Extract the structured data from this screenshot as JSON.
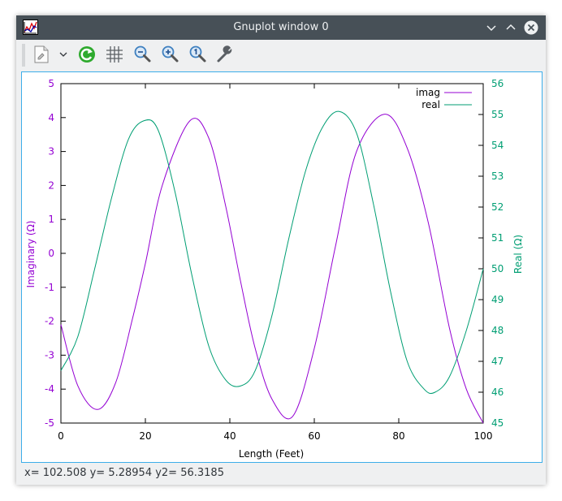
{
  "window": {
    "title": "Gnuplot window 0",
    "statusbar": "x= 102.508 y= 5.28954 y2= 56.3185"
  },
  "toolbar": {
    "items": [
      "export-icon",
      "dropdown-icon",
      "replot-icon",
      "grid-icon",
      "zoom-out-icon",
      "zoom-in-icon",
      "zoom-auto-icon",
      "settings-icon"
    ]
  },
  "colors": {
    "imag": "#9400d3",
    "real": "#009e73",
    "titlebar": "#475057"
  },
  "chart_data": {
    "type": "line",
    "xlabel": "Length (Feet)",
    "ylabel": "Imaginary (Ω)",
    "y2label": "Real (Ω)",
    "xlim": [
      0,
      100
    ],
    "ylim": [
      -5,
      5
    ],
    "y2lim": [
      45,
      56
    ],
    "xticks": [
      0,
      20,
      40,
      60,
      80,
      100
    ],
    "yticks": [
      5,
      4,
      3,
      2,
      1,
      0,
      -1,
      -2,
      -3,
      -4,
      -5
    ],
    "y2ticks": [
      56,
      55,
      54,
      53,
      52,
      51,
      50,
      49,
      48,
      47,
      46,
      45
    ],
    "grid": false,
    "legend": "top-right",
    "series": [
      {
        "name": "imag",
        "axis": "y",
        "x": [
          0,
          4,
          8.7,
          13,
          17,
          20,
          24,
          30.5,
          35,
          39,
          42.5,
          46,
          50,
          54.9,
          60,
          65,
          70,
          76.7,
          82,
          87,
          92,
          96,
          100
        ],
        "y": [
          -2.1,
          -3.9,
          -4.6,
          -3.8,
          -1.9,
          -0.3,
          2.0,
          3.9,
          3.4,
          1.4,
          -0.8,
          -2.8,
          -4.3,
          -4.8,
          -2.8,
          0.2,
          3.0,
          4.1,
          3.1,
          0.9,
          -2.2,
          -4.0,
          -5.0
        ]
      },
      {
        "name": "real",
        "axis": "y2",
        "x": [
          0,
          4,
          8,
          12,
          16,
          19.7,
          23,
          27,
          31,
          35,
          39,
          42.5,
          46,
          50,
          54,
          58,
          62,
          65.9,
          70,
          74,
          78,
          82,
          86,
          88.6,
          92,
          96,
          100
        ],
        "y": [
          46.7,
          47.8,
          50.0,
          52.3,
          54.2,
          54.8,
          54.5,
          52.5,
          49.8,
          47.5,
          46.4,
          46.2,
          46.7,
          48.5,
          51.0,
          53.2,
          54.6,
          55.1,
          54.4,
          52.1,
          49.3,
          47.0,
          46.1,
          46.0,
          46.5,
          48.0,
          50.0
        ]
      }
    ]
  }
}
